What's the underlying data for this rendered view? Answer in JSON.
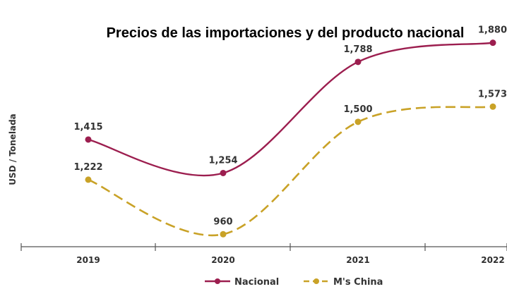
{
  "chart_data": {
    "type": "line",
    "title": "Precios de las importaciones y del producto nacional",
    "xlabel": "",
    "ylabel": "USD / Tonelada",
    "categories": [
      "2019",
      "2020",
      "2021",
      "2022"
    ],
    "series": [
      {
        "name": "Nacional",
        "values": [
          1415,
          1254,
          1788,
          1880
        ],
        "labels": [
          "1,415",
          "1,254",
          "1,788",
          "1,880"
        ],
        "color": "#9c1e4f",
        "dashed": false
      },
      {
        "name": "M's China",
        "values": [
          1222,
          960,
          1500,
          1573
        ],
        "labels": [
          "1,222",
          "960",
          "1,500",
          "1,573"
        ],
        "color": "#c9a227",
        "dashed": true
      }
    ],
    "ylim": [
      900,
      1950
    ],
    "grid": false,
    "legend": "bottom-center"
  }
}
